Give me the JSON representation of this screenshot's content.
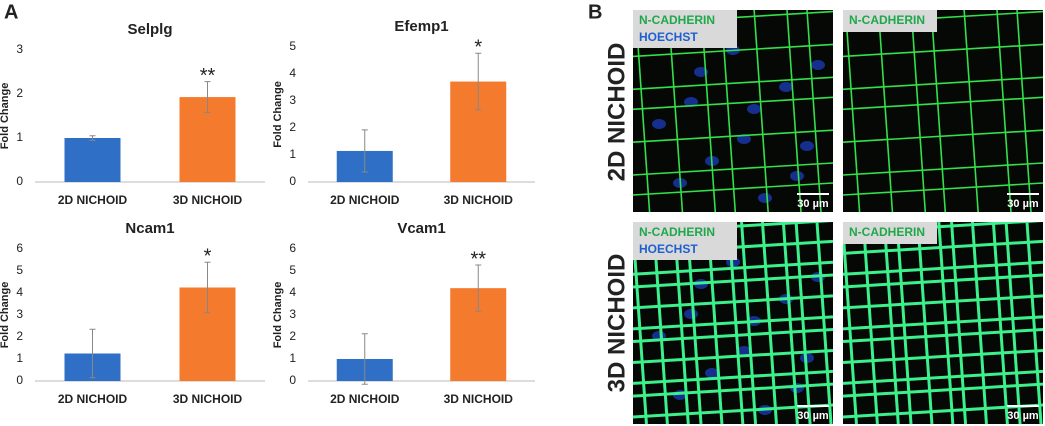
{
  "panel_labels": [
    "A",
    "B"
  ],
  "chart_data": [
    {
      "type": "bar",
      "title": "Selplg",
      "y_label": "Fold Change",
      "categories": [
        "2D NICHOID",
        "3D NICHOID"
      ],
      "values": [
        1.0,
        1.93
      ],
      "errors": [
        0.05,
        0.35
      ],
      "colors": [
        "#2f6fc6",
        "#f47a2e"
      ],
      "annotation": "**",
      "ylim": [
        0,
        3
      ],
      "yticks": [
        0,
        1,
        2,
        3
      ]
    },
    {
      "type": "bar",
      "title": "Efemp1",
      "y_label": "Fold Change",
      "categories": [
        "2D NICHOID",
        "3D NICHOID"
      ],
      "values": [
        1.15,
        3.72
      ],
      "errors": [
        0.78,
        1.05
      ],
      "colors": [
        "#2f6fc6",
        "#f47a2e"
      ],
      "annotation": "*",
      "ylim": [
        0,
        5
      ],
      "yticks": [
        0,
        1,
        2,
        3,
        4,
        5
      ]
    },
    {
      "type": "bar",
      "title": "Ncam1",
      "y_label": "Fold Change",
      "categories": [
        "2D NICHOID",
        "3D NICHOID"
      ],
      "values": [
        1.25,
        4.25
      ],
      "errors": [
        1.1,
        1.15
      ],
      "colors": [
        "#2f6fc6",
        "#f47a2e"
      ],
      "annotation": "*",
      "ylim": [
        0,
        6
      ],
      "yticks": [
        0,
        1,
        2,
        3,
        4,
        5,
        6
      ]
    },
    {
      "type": "bar",
      "title": "Vcam1",
      "y_label": "Fold Change",
      "categories": [
        "2D NICHOID",
        "3D NICHOID"
      ],
      "values": [
        1.0,
        4.22
      ],
      "errors": [
        1.15,
        1.05
      ],
      "colors": [
        "#2f6fc6",
        "#f47a2e"
      ],
      "annotation": "**",
      "ylim": [
        0,
        6
      ],
      "yticks": [
        0,
        1,
        2,
        3,
        4,
        5,
        6
      ]
    }
  ],
  "panel_b": {
    "rows": [
      "2D NICHOID",
      "3D NICHOID"
    ],
    "marker_1": "N-CADHERIN",
    "marker_2": "HOECHST",
    "scale_bar": "30 µm"
  }
}
